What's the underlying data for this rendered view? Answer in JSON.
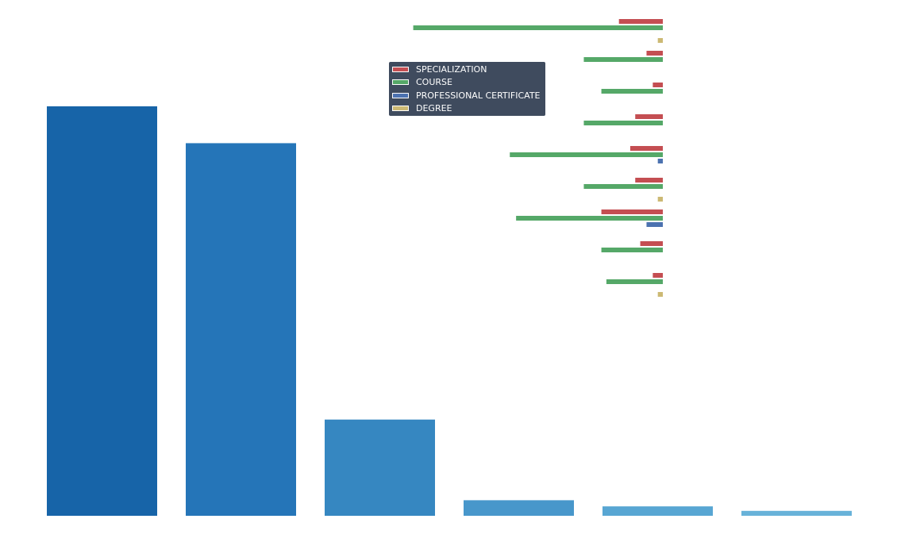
{
  "chart_data": [
    {
      "type": "bar",
      "orientation": "vertical",
      "categories": [
        "",
        "",
        "",
        "",
        "",
        ""
      ],
      "values": [
        100,
        91,
        23.5,
        3.8,
        2.3,
        1.2
      ],
      "colors": [
        "#1764a8",
        "#2575b8",
        "#3687c1",
        "#4897cb",
        "#58a6d3",
        "#68b2d9"
      ],
      "ylim": [
        0,
        100
      ]
    },
    {
      "type": "bar",
      "orientation": "horizontal",
      "groups": 9,
      "xlim": [
        0,
        100
      ],
      "x_inverted": true,
      "series": [
        {
          "name": "SPECIALIZATION",
          "color": "#c44e52",
          "values": [
            17.5,
            6.5,
            4,
            11,
            13,
            11,
            24.5,
            9,
            4
          ]
        },
        {
          "name": "COURSE",
          "color": "#55a868",
          "values": [
            99.5,
            31.5,
            24.5,
            31.5,
            61,
            31.5,
            58.5,
            24.5,
            22.5
          ]
        },
        {
          "name": "PROFESSIONAL CERTIFICATE",
          "color": "#4c72b0",
          "values": [
            0,
            0,
            0,
            0,
            2,
            0,
            6.5,
            0,
            0
          ]
        },
        {
          "name": "DEGREE",
          "color": "#ccb974",
          "values": [
            2,
            0,
            0,
            0,
            0,
            2,
            0,
            0,
            2
          ]
        }
      ]
    }
  ],
  "legend": {
    "placement": "top-center",
    "items": [
      {
        "label": "SPECIALIZATION",
        "color": "#c44e52"
      },
      {
        "label": "COURSE",
        "color": "#55a868"
      },
      {
        "label": "PROFESSIONAL CERTIFICATE",
        "color": "#4c72b0"
      },
      {
        "label": "DEGREE",
        "color": "#ccb974"
      }
    ]
  }
}
